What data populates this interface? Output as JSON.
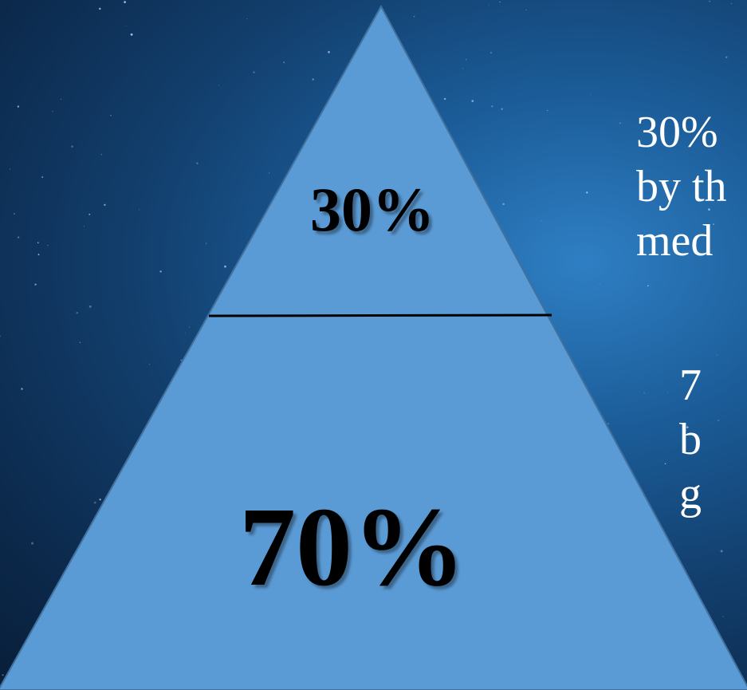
{
  "pyramid": {
    "top_section_label": "30%",
    "bottom_section_label": "70%",
    "fill_color": "#5b9bd5",
    "edge_color": "#41719c",
    "divider_color": "#000000"
  },
  "side_text": {
    "top_lines": [
      "30%",
      "by th",
      "med"
    ],
    "bottom_lines": [
      "7",
      "b",
      "g"
    ]
  },
  "background": {
    "colors": [
      "#081e39",
      "#123e6c",
      "#2f7fc4"
    ]
  }
}
